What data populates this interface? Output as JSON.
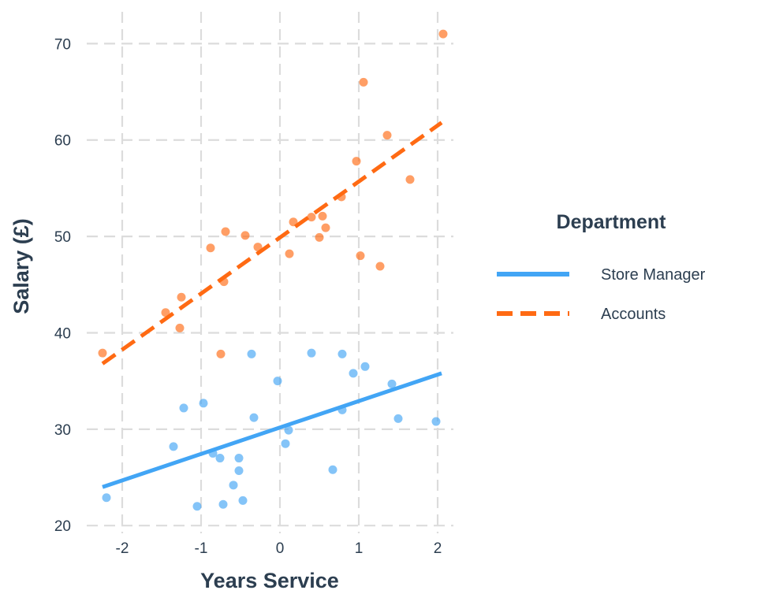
{
  "chart_data": {
    "type": "scatter",
    "xlabel": "Years Service",
    "ylabel": "Salary (£)",
    "xlim": [
      -2.45,
      2.2
    ],
    "ylim": [
      19.2,
      73.3
    ],
    "x_ticks": [
      -2,
      -1,
      0,
      1,
      2
    ],
    "x_tick_labels": [
      "-2",
      "-1",
      "0",
      "1",
      "2"
    ],
    "y_ticks": [
      20,
      30,
      40,
      50,
      60,
      70
    ],
    "y_tick_labels": [
      "20",
      "30",
      "40",
      "50",
      "60",
      "70"
    ],
    "grid": true,
    "legend": {
      "title": "Department",
      "position": "right"
    },
    "series": [
      {
        "name": "Store Manager",
        "color": "#42a5f5",
        "line_style": "solid",
        "fit_line": {
          "x": [
            -2.25,
            2.05
          ],
          "y": [
            24.0,
            35.8
          ]
        },
        "points": [
          {
            "x": -2.2,
            "y": 22.9
          },
          {
            "x": -1.05,
            "y": 22.0
          },
          {
            "x": -1.35,
            "y": 28.2
          },
          {
            "x": -1.22,
            "y": 32.2
          },
          {
            "x": -0.97,
            "y": 32.7
          },
          {
            "x": -0.85,
            "y": 27.5
          },
          {
            "x": -0.76,
            "y": 27.0
          },
          {
            "x": -0.72,
            "y": 22.2
          },
          {
            "x": -0.59,
            "y": 24.2
          },
          {
            "x": -0.52,
            "y": 25.7
          },
          {
            "x": -0.52,
            "y": 27.0
          },
          {
            "x": -0.47,
            "y": 22.6
          },
          {
            "x": -0.36,
            "y": 37.8
          },
          {
            "x": -0.33,
            "y": 31.2
          },
          {
            "x": -0.03,
            "y": 35.0
          },
          {
            "x": 0.07,
            "y": 28.5
          },
          {
            "x": 0.11,
            "y": 29.9
          },
          {
            "x": 0.4,
            "y": 37.9
          },
          {
            "x": 0.67,
            "y": 25.8
          },
          {
            "x": 0.79,
            "y": 37.8
          },
          {
            "x": 0.79,
            "y": 32.0
          },
          {
            "x": 0.93,
            "y": 35.8
          },
          {
            "x": 1.08,
            "y": 36.5
          },
          {
            "x": 1.42,
            "y": 34.7
          },
          {
            "x": 1.5,
            "y": 31.1
          },
          {
            "x": 1.98,
            "y": 30.8
          }
        ]
      },
      {
        "name": "Accounts",
        "color": "#ff6a13",
        "line_style": "dashed",
        "fit_line": {
          "x": [
            -2.25,
            2.05
          ],
          "y": [
            36.8,
            61.8
          ]
        },
        "points": [
          {
            "x": -2.25,
            "y": 37.9
          },
          {
            "x": -1.45,
            "y": 42.1
          },
          {
            "x": -1.25,
            "y": 43.7
          },
          {
            "x": -1.27,
            "y": 40.5
          },
          {
            "x": -0.88,
            "y": 48.8
          },
          {
            "x": -0.75,
            "y": 37.8
          },
          {
            "x": -0.69,
            "y": 50.5
          },
          {
            "x": -0.71,
            "y": 45.3
          },
          {
            "x": -0.44,
            "y": 50.1
          },
          {
            "x": -0.28,
            "y": 48.9
          },
          {
            "x": 0.12,
            "y": 48.2
          },
          {
            "x": 0.17,
            "y": 51.5
          },
          {
            "x": 0.4,
            "y": 52.0
          },
          {
            "x": 0.5,
            "y": 49.9
          },
          {
            "x": 0.54,
            "y": 52.1
          },
          {
            "x": 0.58,
            "y": 50.9
          },
          {
            "x": 0.78,
            "y": 54.1
          },
          {
            "x": 0.97,
            "y": 57.8
          },
          {
            "x": 1.02,
            "y": 48.0
          },
          {
            "x": 1.06,
            "y": 66.0
          },
          {
            "x": 1.27,
            "y": 46.9
          },
          {
            "x": 1.36,
            "y": 60.5
          },
          {
            "x": 1.65,
            "y": 55.9
          },
          {
            "x": 2.07,
            "y": 71.0
          }
        ]
      }
    ]
  }
}
